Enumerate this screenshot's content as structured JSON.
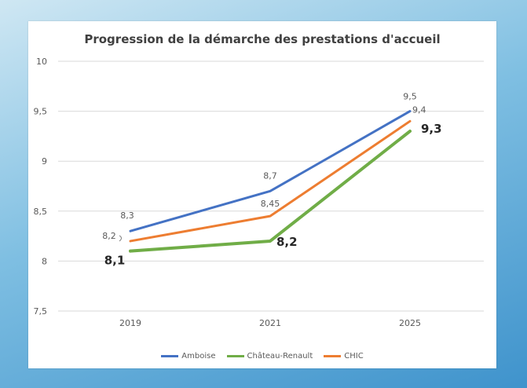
{
  "chart_data": {
    "type": "line",
    "title": "Progression de la démarche des prestations d'accueil",
    "xlabel": "",
    "ylabel": "",
    "categories": [
      "2019",
      "2021",
      "2025"
    ],
    "ylim": [
      7.5,
      10
    ],
    "yticks": [
      "7,5",
      "8",
      "8,5",
      "9",
      "9,5",
      "10"
    ],
    "ytick_values": [
      7.5,
      8,
      8.5,
      9,
      9.5,
      10
    ],
    "grid": true,
    "legend": "bottom",
    "series": [
      {
        "name": "Amboise",
        "color": "#4472c4",
        "values": [
          8.3,
          8.7,
          9.5
        ],
        "labels": [
          "8,3",
          "8,7",
          "9,5"
        ],
        "label_bold": false
      },
      {
        "name": "Château-Renault",
        "color": "#70ad47",
        "values": [
          8.1,
          8.2,
          9.3
        ],
        "labels": [
          "8,1",
          "8,2",
          "9,3"
        ],
        "label_bold": true
      },
      {
        "name": "CHIC",
        "color": "#ed7d31",
        "values": [
          8.2,
          8.45,
          9.4
        ],
        "labels": [
          "8,2",
          "8,45",
          "9,4"
        ],
        "label_bold": false
      }
    ]
  }
}
